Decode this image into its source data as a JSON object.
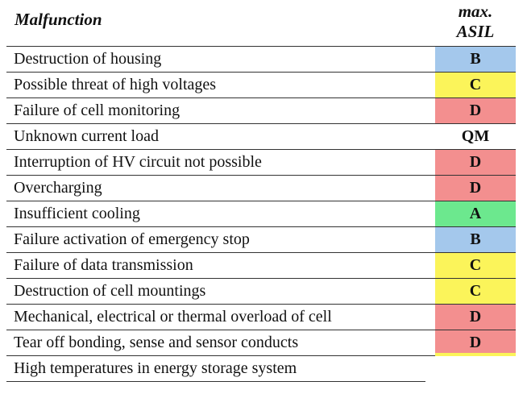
{
  "header": {
    "malfunction": "Malfunction",
    "asil_line1": "max.",
    "asil_line2": "ASIL"
  },
  "rows": [
    {
      "label": "Destruction of housing",
      "asil": "B",
      "color": "#a4c8ec"
    },
    {
      "label": "Possible threat of high voltages",
      "asil": "C",
      "color": "#fbf45a"
    },
    {
      "label": "Failure of cell monitoring",
      "asil": "D",
      "color": "#f38f8f"
    },
    {
      "label": "Unknown current load",
      "asil": "QM",
      "color": "#ffffff"
    },
    {
      "label": "Interruption of HV circuit not possible",
      "asil": "D",
      "color": "#f38f8f"
    },
    {
      "label": "Overcharging",
      "asil": "D",
      "color": "#f38f8f"
    },
    {
      "label": "Insufficient cooling",
      "asil": "A",
      "color": "#6ce88e"
    },
    {
      "label": "Failure activation of emergency stop",
      "asil": "B",
      "color": "#a4c8ec"
    },
    {
      "label": "Failure of data transmission",
      "asil": "C",
      "color": "#fbf45a"
    },
    {
      "label": "Destruction of cell mountings",
      "asil": "C",
      "color": "#fbf45a"
    },
    {
      "label": "Mechanical, electrical or thermal overload of cell",
      "asil": "D",
      "color": "#f38f8f"
    },
    {
      "label": "Tear off bonding, sense and sensor conducts",
      "asil": "D",
      "color": "#f38f8f"
    },
    {
      "label": "High temperatures in energy storage system",
      "asil": "",
      "color": "#ffffff"
    }
  ],
  "strip_color": "#fbf45a"
}
